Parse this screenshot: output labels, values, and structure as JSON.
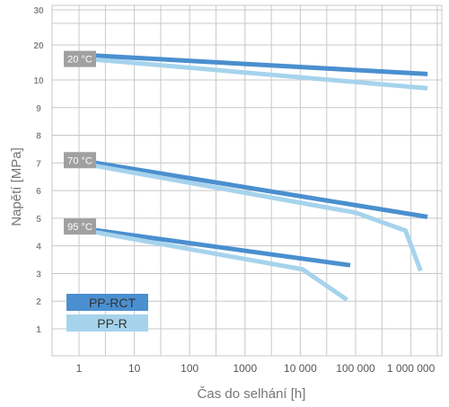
{
  "chart_data": {
    "type": "line",
    "xlabel": "Čas do selhání [h]",
    "ylabel": "Napětí [MPa]",
    "x_scale": "log",
    "xlim": [
      0.1,
      3000000
    ],
    "x_ticks": [
      1,
      10,
      100,
      1000,
      10000,
      100000,
      1000000
    ],
    "x_tick_labels": [
      "1",
      "10",
      "100",
      "1000",
      "10 000",
      "100 000",
      "1 000 000"
    ],
    "y_ticks": [
      1,
      2,
      3,
      4,
      5,
      6,
      7,
      8,
      9,
      10,
      20,
      30
    ],
    "y_tick_labels": [
      "1",
      "2",
      "3",
      "4",
      "5",
      "6",
      "7",
      "8",
      "9",
      "10",
      "20",
      "30"
    ],
    "grid": true,
    "legend_position": "bottom-left",
    "colors": {
      "PP-RCT": "#4a8fcf",
      "PP-R": "#a6d3ec",
      "temp_badge": "#a0a0a0",
      "grid": "#c8c8c8"
    },
    "temperature_labels": [
      {
        "text": "20 °C",
        "y": 16
      },
      {
        "text": "70 °C",
        "y": 7.1
      },
      {
        "text": "95 °C",
        "y": 4.7
      }
    ],
    "series": [
      {
        "name": "PP-RCT",
        "temperature": "20 °C",
        "x": [
          1,
          2000000
        ],
        "y": [
          17.2,
          11.7
        ]
      },
      {
        "name": "PP-R",
        "temperature": "20 °C",
        "x": [
          1,
          2000000
        ],
        "y": [
          16.2,
          9.7
        ]
      },
      {
        "name": "PP-RCT",
        "temperature": "70 °C",
        "x": [
          1,
          2000000
        ],
        "y": [
          7.1,
          5.05
        ]
      },
      {
        "name": "PP-R",
        "temperature": "70 °C",
        "x": [
          1,
          100000,
          800000,
          1500000
        ],
        "y": [
          7.0,
          5.2,
          4.55,
          3.1
        ]
      },
      {
        "name": "PP-RCT",
        "temperature": "95 °C",
        "x": [
          1,
          80000
        ],
        "y": [
          4.65,
          3.3
        ]
      },
      {
        "name": "PP-R",
        "temperature": "95 °C",
        "x": [
          1,
          11000,
          70000
        ],
        "y": [
          4.6,
          3.15,
          2.05
        ]
      }
    ]
  }
}
